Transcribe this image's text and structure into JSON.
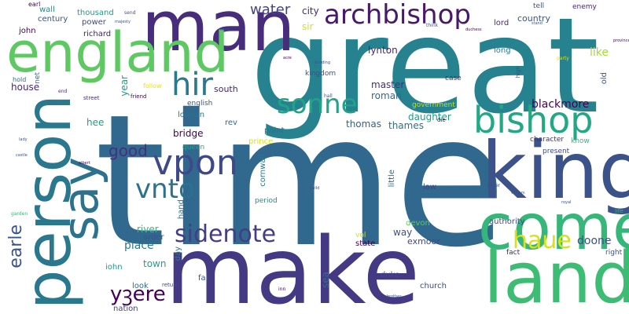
{
  "words": [
    {
      "text": "time",
      "color": "#31688e"
    },
    {
      "text": "great",
      "color": "#26828e"
    },
    {
      "text": "make",
      "color": "#443a83"
    },
    {
      "text": "man",
      "color": "#472d7b"
    },
    {
      "text": "england",
      "color": "#5ec962"
    },
    {
      "text": "person",
      "color": "#2a788e"
    },
    {
      "text": "king",
      "color": "#3b528b"
    },
    {
      "text": "come",
      "color": "#35b779"
    },
    {
      "text": "land",
      "color": "#3dbc74"
    },
    {
      "text": "say",
      "color": "#2c728e"
    },
    {
      "text": "archbishop",
      "color": "#48186a"
    },
    {
      "text": "bishop",
      "color": "#22a884"
    },
    {
      "text": "sonne",
      "color": "#20a386"
    },
    {
      "text": "hir",
      "color": "#2a788e"
    },
    {
      "text": "vpon",
      "color": "#3e4989"
    },
    {
      "text": "vnto",
      "color": "#2c728e"
    },
    {
      "text": "sidenote",
      "color": "#433e85"
    },
    {
      "text": "earle",
      "color": "#3b528b"
    },
    {
      "text": "yꝫere",
      "color": "#440154"
    },
    {
      "text": "haue",
      "color": "#d8e219"
    },
    {
      "text": "water",
      "color": "#414487"
    },
    {
      "text": "good",
      "color": "#46307e"
    },
    {
      "text": "blackmore",
      "color": "#440154"
    },
    {
      "text": "doone",
      "color": "#3b528b"
    },
    {
      "text": "city",
      "color": "#482878"
    },
    {
      "text": "lynton",
      "color": "#482475"
    },
    {
      "text": "master",
      "color": "#472d7b"
    },
    {
      "text": "roman",
      "color": "#31688e"
    },
    {
      "text": "thomas",
      "color": "#33638d"
    },
    {
      "text": "thames",
      "color": "#2d708e"
    },
    {
      "text": "daughter",
      "color": "#1f9a8a"
    },
    {
      "text": "government",
      "color": "#c2df23"
    },
    {
      "text": "like",
      "color": "#a5db36"
    },
    {
      "text": "country",
      "color": "#39568c"
    },
    {
      "text": "long",
      "color": "#2a788e"
    },
    {
      "text": "lord",
      "color": "#482878"
    },
    {
      "text": "john",
      "color": "#440154"
    },
    {
      "text": "richard",
      "color": "#48186a"
    },
    {
      "text": "thousand",
      "color": "#1f9a8a"
    },
    {
      "text": "power",
      "color": "#3e4989"
    },
    {
      "text": "century",
      "color": "#3b528b"
    },
    {
      "text": "wall",
      "color": "#238a8d"
    },
    {
      "text": "earl",
      "color": "#440154"
    },
    {
      "text": "house",
      "color": "#482878"
    },
    {
      "text": "hold",
      "color": "#31688e"
    },
    {
      "text": "year",
      "color": "#1f9e89"
    },
    {
      "text": "follow",
      "color": "#e5e419"
    },
    {
      "text": "english",
      "color": "#3b528b"
    },
    {
      "text": "south",
      "color": "#481f70"
    },
    {
      "text": "london",
      "color": "#2c728e"
    },
    {
      "text": "bridge",
      "color": "#440154"
    },
    {
      "text": "rev",
      "color": "#31688e"
    },
    {
      "text": "point",
      "color": "#2c728e"
    },
    {
      "text": "prince",
      "color": "#d8e219"
    },
    {
      "text": "hee",
      "color": "#1f9e89"
    },
    {
      "text": "queen",
      "color": "#22a884"
    },
    {
      "text": "cornwall",
      "color": "#2a788e"
    },
    {
      "text": "river",
      "color": "#35b779"
    },
    {
      "text": "order",
      "color": "#3b528b"
    },
    {
      "text": "place",
      "color": "#2a788e"
    },
    {
      "text": "town",
      "color": "#1fa187"
    },
    {
      "text": "iohn",
      "color": "#1f9a8a"
    },
    {
      "text": "look",
      "color": "#31688e"
    },
    {
      "text": "nation",
      "color": "#414487"
    },
    {
      "text": "far",
      "color": "#3b528b"
    },
    {
      "text": "devon",
      "color": "#5ec962"
    },
    {
      "text": "way",
      "color": "#3b528b"
    },
    {
      "text": "exmoor",
      "color": "#3e4989"
    },
    {
      "text": "state",
      "color": "#440154"
    },
    {
      "text": "vol",
      "color": "#d8e219"
    },
    {
      "text": "duke",
      "color": "#3e4989"
    },
    {
      "text": "church",
      "color": "#3e4989"
    },
    {
      "text": "sea",
      "color": "#2c728e"
    },
    {
      "text": "authority",
      "color": "#3e4989"
    },
    {
      "text": "fact",
      "color": "#481f70"
    },
    {
      "text": "law",
      "color": "#414487"
    },
    {
      "text": "little",
      "color": "#31688e"
    },
    {
      "text": "period",
      "color": "#238a8d"
    },
    {
      "text": "hand",
      "color": "#2a788e"
    },
    {
      "text": "day",
      "color": "#2a788e"
    },
    {
      "text": "right",
      "color": "#3b528b"
    },
    {
      "text": "know",
      "color": "#35b779"
    },
    {
      "text": "present",
      "color": "#3e4989"
    },
    {
      "text": "character",
      "color": "#472d7b"
    },
    {
      "text": "enemy",
      "color": "#482878"
    },
    {
      "text": "tell",
      "color": "#3b528b"
    },
    {
      "text": "old",
      "color": "#3b528b"
    },
    {
      "text": "kingdom",
      "color": "#3b528b"
    },
    {
      "text": "sir",
      "color": "#d8e219"
    },
    {
      "text": "case",
      "color": "#482878"
    },
    {
      "text": "net",
      "color": "#31688e"
    },
    {
      "text": "friend",
      "color": "#440154"
    },
    {
      "text": "street",
      "color": "#472d7b"
    },
    {
      "text": "high",
      "color": "#3b528b"
    },
    {
      "text": "die",
      "color": "#440154"
    },
    {
      "text": "think",
      "color": "#3b528b"
    },
    {
      "text": "return",
      "color": "#3e4989"
    },
    {
      "text": "inn",
      "color": "#440154"
    },
    {
      "text": "end",
      "color": "#482878"
    },
    {
      "text": "send",
      "color": "#3b528b"
    },
    {
      "text": "hall",
      "color": "#3b528b"
    },
    {
      "text": "building",
      "color": "#3b528b"
    },
    {
      "text": "garden",
      "color": "#35b779"
    },
    {
      "text": "letter",
      "color": "#3b528b"
    },
    {
      "text": "life",
      "color": "#35b779"
    },
    {
      "text": "party",
      "color": "#d8e219"
    },
    {
      "text": "stand",
      "color": "#3b528b"
    },
    {
      "text": "build",
      "color": "#3b528b"
    },
    {
      "text": "royal",
      "color": "#3b528b"
    },
    {
      "text": "william",
      "color": "#3b528b"
    },
    {
      "text": "albert",
      "color": "#440154"
    },
    {
      "text": "room",
      "color": "#3b528b"
    },
    {
      "text": "brother",
      "color": "#3b528b"
    },
    {
      "text": "majesty",
      "color": "#3b528b"
    },
    {
      "text": "acre",
      "color": "#440154"
    },
    {
      "text": "duchess",
      "color": "#440154"
    },
    {
      "text": "province",
      "color": "#440154"
    },
    {
      "text": "lady",
      "color": "#3b528b"
    },
    {
      "text": "castle",
      "color": "#3b528b"
    }
  ]
}
